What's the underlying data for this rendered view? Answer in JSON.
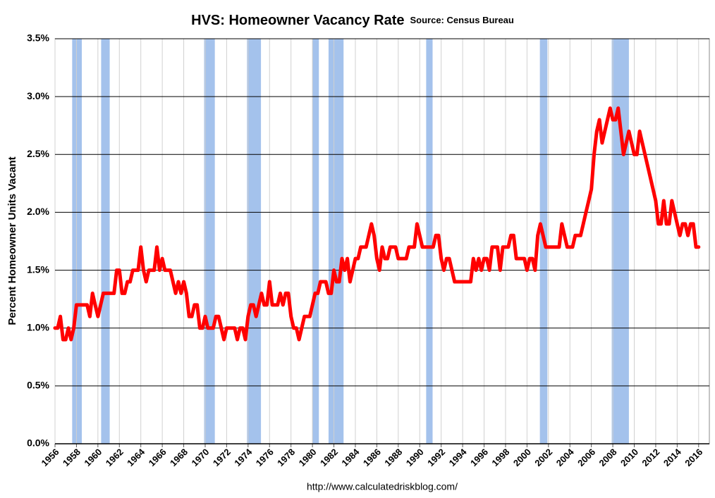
{
  "chart_data": {
    "type": "line",
    "title": "HVS: Homeowner Vacancy Rate",
    "subtitle": "Source: Census Bureau",
    "y_label": "Percent Homeowner Units Vacant",
    "footer": "http://www.calculatedriskblog.com/",
    "xlim": [
      1956,
      2017
    ],
    "xticks": [
      1956,
      1958,
      1960,
      1962,
      1964,
      1966,
      1968,
      1970,
      1972,
      1974,
      1976,
      1978,
      1980,
      1982,
      1984,
      1986,
      1988,
      1990,
      1992,
      1994,
      1996,
      1998,
      2000,
      2002,
      2004,
      2006,
      2008,
      2010,
      2012,
      2014,
      2016
    ],
    "ylim": [
      0,
      3.5
    ],
    "yticks": [
      {
        "value": 0,
        "label": "0.0%"
      },
      {
        "value": 0.5,
        "label": "0.5%"
      },
      {
        "value": 1,
        "label": "1.0%"
      },
      {
        "value": 1.5,
        "label": "1.5%"
      },
      {
        "value": 2,
        "label": "2.0%"
      },
      {
        "value": 2.5,
        "label": "2.5%"
      },
      {
        "value": 3,
        "label": "3.0%"
      },
      {
        "value": 3.5,
        "label": "3.5%"
      }
    ],
    "grid": true,
    "recession_color": "#a4c2ec",
    "recessions": [
      [
        1957.6,
        1958.5
      ],
      [
        1960.3,
        1961.1
      ],
      [
        1969.9,
        1970.9
      ],
      [
        1973.9,
        1975.2
      ],
      [
        1980.0,
        1980.6
      ],
      [
        1981.5,
        1982.9
      ],
      [
        1990.6,
        1991.2
      ],
      [
        2001.2,
        2001.9
      ],
      [
        2007.9,
        2009.5
      ]
    ],
    "x": [
      1956,
      1956.25,
      1956.5,
      1956.75,
      1957,
      1957.25,
      1957.5,
      1957.75,
      1958,
      1958.5,
      1959,
      1959.25,
      1959.5,
      1959.75,
      1960,
      1960.25,
      1960.5,
      1961,
      1961.5,
      1961.75,
      1962,
      1962.25,
      1962.5,
      1962.75,
      1963,
      1963.25,
      1963.5,
      1963.75,
      1964,
      1964.25,
      1964.5,
      1964.75,
      1965,
      1965.25,
      1965.5,
      1965.75,
      1966,
      1966.25,
      1966.5,
      1966.75,
      1967,
      1967.25,
      1967.5,
      1967.75,
      1968,
      1968.25,
      1968.5,
      1968.75,
      1969,
      1969.25,
      1969.5,
      1969.75,
      1970,
      1970.25,
      1970.5,
      1970.75,
      1971,
      1971.25,
      1971.5,
      1971.75,
      1972,
      1972.5,
      1972.75,
      1973,
      1973.25,
      1973.5,
      1973.75,
      1974,
      1974.25,
      1974.5,
      1974.75,
      1975,
      1975.25,
      1975.5,
      1975.75,
      1976,
      1976.25,
      1976.5,
      1976.75,
      1977,
      1977.25,
      1977.5,
      1977.75,
      1978,
      1978.25,
      1978.5,
      1978.75,
      1979,
      1979.25,
      1979.5,
      1979.75,
      1980,
      1980.25,
      1980.5,
      1980.75,
      1981,
      1981.25,
      1981.5,
      1981.75,
      1982,
      1982.25,
      1982.5,
      1982.75,
      1983,
      1983.25,
      1983.5,
      1983.75,
      1984,
      1984.25,
      1984.5,
      1984.75,
      1985,
      1985.25,
      1985.5,
      1985.75,
      1986,
      1986.25,
      1986.5,
      1986.75,
      1987,
      1987.25,
      1987.5,
      1987.75,
      1988,
      1988.5,
      1988.75,
      1989,
      1989.25,
      1989.5,
      1989.75,
      1990,
      1990.25,
      1990.5,
      1991,
      1991.25,
      1991.5,
      1991.75,
      1992,
      1992.25,
      1992.5,
      1992.75,
      1993,
      1993.25,
      1993.5,
      1994,
      1994.5,
      1994.75,
      1995,
      1995.25,
      1995.5,
      1995.75,
      1996,
      1996.25,
      1996.5,
      1996.75,
      1997,
      1997.25,
      1997.5,
      1997.75,
      1998,
      1998.25,
      1998.5,
      1998.75,
      1999,
      1999.25,
      1999.5,
      1999.75,
      2000,
      2000.25,
      2000.5,
      2000.75,
      2001,
      2001.25,
      2001.5,
      2001.75,
      2002,
      2002.5,
      2002.75,
      2003,
      2003.25,
      2003.5,
      2003.75,
      2004,
      2004.25,
      2004.5,
      2004.75,
      2005,
      2005.25,
      2005.5,
      2005.75,
      2006,
      2006.25,
      2006.5,
      2006.75,
      2007,
      2007.25,
      2007.5,
      2007.75,
      2008,
      2008.25,
      2008.5,
      2008.75,
      2009,
      2009.25,
      2009.5,
      2009.75,
      2010,
      2010.25,
      2010.5,
      2010.75,
      2011,
      2011.5,
      2012,
      2012.25,
      2012.5,
      2012.75,
      2013,
      2013.25,
      2013.5,
      2013.75,
      2014,
      2014.25,
      2014.5,
      2014.75,
      2015,
      2015.25,
      2015.5,
      2015.75,
      2016
    ],
    "series": [
      {
        "color": "#ff0000",
        "values": [
          1.0,
          1.0,
          1.1,
          0.9,
          0.9,
          1.0,
          0.9,
          1.0,
          1.2,
          1.2,
          1.2,
          1.1,
          1.3,
          1.2,
          1.1,
          1.2,
          1.3,
          1.3,
          1.3,
          1.5,
          1.5,
          1.3,
          1.3,
          1.4,
          1.4,
          1.5,
          1.5,
          1.5,
          1.7,
          1.5,
          1.4,
          1.5,
          1.5,
          1.5,
          1.7,
          1.5,
          1.6,
          1.5,
          1.5,
          1.5,
          1.4,
          1.3,
          1.4,
          1.3,
          1.4,
          1.3,
          1.1,
          1.1,
          1.2,
          1.2,
          1.0,
          1.0,
          1.1,
          1.0,
          1.0,
          1.0,
          1.1,
          1.1,
          1.0,
          0.9,
          1.0,
          1.0,
          1.0,
          0.9,
          1.0,
          1.0,
          0.9,
          1.1,
          1.2,
          1.2,
          1.1,
          1.2,
          1.3,
          1.2,
          1.2,
          1.4,
          1.2,
          1.2,
          1.2,
          1.3,
          1.2,
          1.3,
          1.3,
          1.1,
          1.0,
          1.0,
          0.9,
          1.0,
          1.1,
          1.1,
          1.1,
          1.2,
          1.3,
          1.3,
          1.4,
          1.4,
          1.4,
          1.3,
          1.3,
          1.5,
          1.4,
          1.4,
          1.6,
          1.5,
          1.6,
          1.4,
          1.5,
          1.6,
          1.6,
          1.7,
          1.7,
          1.7,
          1.8,
          1.9,
          1.8,
          1.6,
          1.5,
          1.7,
          1.6,
          1.6,
          1.7,
          1.7,
          1.7,
          1.6,
          1.6,
          1.6,
          1.7,
          1.7,
          1.7,
          1.9,
          1.8,
          1.7,
          1.7,
          1.7,
          1.7,
          1.8,
          1.8,
          1.6,
          1.5,
          1.6,
          1.6,
          1.5,
          1.4,
          1.4,
          1.4,
          1.4,
          1.4,
          1.6,
          1.5,
          1.6,
          1.5,
          1.6,
          1.6,
          1.5,
          1.7,
          1.7,
          1.7,
          1.5,
          1.7,
          1.7,
          1.7,
          1.8,
          1.8,
          1.6,
          1.6,
          1.6,
          1.6,
          1.5,
          1.6,
          1.6,
          1.5,
          1.8,
          1.9,
          1.8,
          1.7,
          1.7,
          1.7,
          1.7,
          1.7,
          1.9,
          1.8,
          1.7,
          1.7,
          1.7,
          1.8,
          1.8,
          1.8,
          1.9,
          2.0,
          2.1,
          2.2,
          2.5,
          2.7,
          2.8,
          2.6,
          2.7,
          2.8,
          2.9,
          2.8,
          2.8,
          2.9,
          2.7,
          2.5,
          2.6,
          2.7,
          2.6,
          2.5,
          2.5,
          2.7,
          2.6,
          2.5,
          2.3,
          2.1,
          1.9,
          1.9,
          2.1,
          1.9,
          1.9,
          2.1,
          2.0,
          1.9,
          1.8,
          1.9,
          1.9,
          1.8,
          1.9,
          1.9,
          1.7,
          1.7
        ]
      }
    ]
  }
}
